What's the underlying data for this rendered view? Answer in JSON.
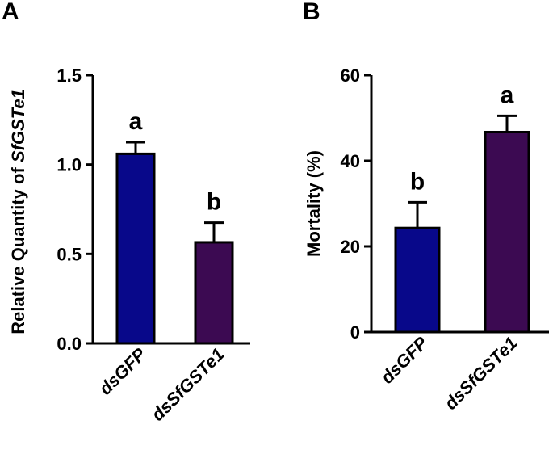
{
  "chart_data": [
    {
      "panel": "A",
      "type": "bar",
      "title": "",
      "xlabel": "",
      "ylabel_prefix": "Relative Quantity of ",
      "ylabel_gene": "SfGSTe1",
      "ylim": [
        0,
        1.5
      ],
      "yticks": [
        "0.0",
        "0.5",
        "1.0",
        "1.5"
      ],
      "categories": [
        "dsGFP",
        "dsSfGSTe1"
      ],
      "values": [
        1.06,
        0.565
      ],
      "errors": [
        0.065,
        0.11
      ],
      "significance": [
        "a",
        "b"
      ],
      "colors": [
        "#08088a",
        "#3c0a52"
      ]
    },
    {
      "panel": "B",
      "type": "bar",
      "title": "",
      "xlabel": "",
      "ylabel": "Mortality (%)",
      "ylim": [
        0,
        60
      ],
      "yticks": [
        "0",
        "20",
        "40",
        "60"
      ],
      "categories": [
        "dsGFP",
        "dsSfGSTe1"
      ],
      "values": [
        24.3,
        46.7
      ],
      "errors": [
        6.0,
        3.8
      ],
      "significance": [
        "b",
        "a"
      ],
      "colors": [
        "#08088a",
        "#3c0a52"
      ]
    }
  ]
}
